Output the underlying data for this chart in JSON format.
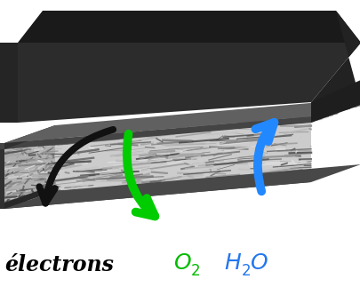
{
  "bg_color": "#ffffff",
  "fig_width": 4.06,
  "fig_height": 3.23,
  "dpi": 100,
  "electrons_label": "électrons",
  "o2_color": "#00bb00",
  "h2o_color": "#2277ee",
  "electrons_color": "#000000",
  "label_fontsize": 17,
  "sub_fontsize": 12,
  "green_arrow_color": "#00cc00",
  "blue_arrow_color": "#2288ff",
  "black_arrow_color": "#1a1a1a",
  "plate_dark": "#1a1a1a",
  "plate_mid": "#2d2d2d",
  "plate_light": "#383838",
  "gdl_frame_dark": "#222222",
  "gdl_frame_light": "#555555",
  "gdl_top_color": "#bbbbbb",
  "gdl_front_color": "#aaaaaa",
  "gdl_left_color": "#999999"
}
